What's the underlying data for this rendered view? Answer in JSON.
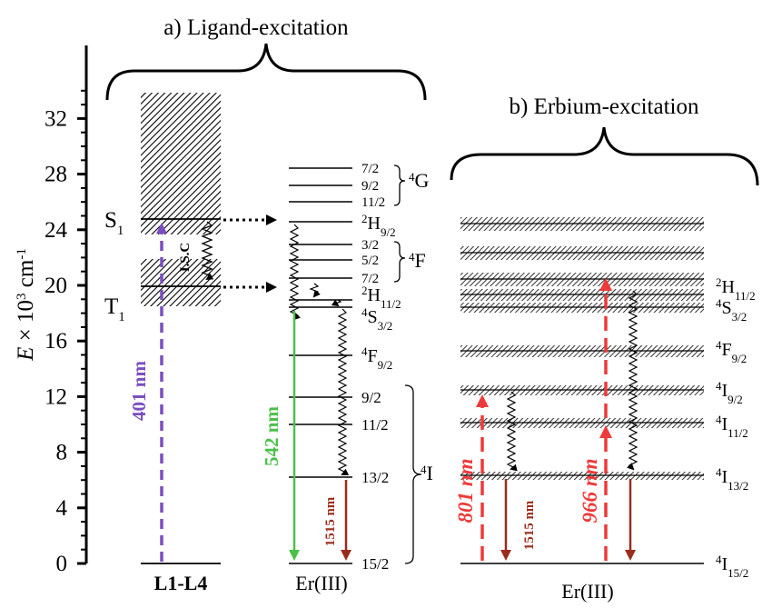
{
  "panel_a": {
    "title": "a) Ligand-excitation"
  },
  "panel_b": {
    "title": "b) Erbium-excitation"
  },
  "y_axis": {
    "label_main": "E",
    "label_rest": " × 10",
    "label_exp": "3",
    "label_unit": " cm",
    "label_unit_exp": "-1",
    "ticks": [
      "0",
      "4",
      "8",
      "12",
      "16",
      "20",
      "24",
      "28",
      "32"
    ]
  },
  "ligand": {
    "name": "L1-L4",
    "s1": {
      "main": "S",
      "sub": "1"
    },
    "t1": {
      "main": "T",
      "sub": "1"
    },
    "isc": "I.S.C",
    "excitation": "401 nm"
  },
  "er_a": {
    "name": "Er(III)",
    "levels": {
      "g72": "7/2",
      "g92": "9/2",
      "g112": "11/2",
      "G_term": "G",
      "G_sup": "4",
      "h92_sup": "2",
      "h92_main": "H",
      "h92_sub": "9/2",
      "f32": "3/2",
      "f52": "5/2",
      "f72": "7/2",
      "F_term": "F",
      "F_sup": "4",
      "h112_sup": "2",
      "h112_main": "H",
      "h112_sub": "11/2",
      "s32_sup": "4",
      "s32_main": "S",
      "s32_sub": "3/2",
      "f92_sup": "4",
      "f92_main": "F",
      "f92_sub": "9/2",
      "i92": "9/2",
      "i112": "11/2",
      "i132": "13/2",
      "i152": "15/2",
      "I_term": "I",
      "I_sup": "4"
    },
    "green": "542 nm",
    "nir": "1515 nm"
  },
  "er_b": {
    "name": "Er(III)",
    "levels": {
      "h112_sup": "2",
      "h112_main": "H",
      "h112_sub": "11/2",
      "s32_sup": "4",
      "s32_main": "S",
      "s32_sub": "3/2",
      "f92_sup": "4",
      "f92_main": "F",
      "f92_sub": "9/2",
      "i92_sup": "4",
      "i92_main": "I",
      "i92_sub": "9/2",
      "i112_sup": "4",
      "i112_main": "I",
      "i112_sub": "11/2",
      "i132_sup": "4",
      "i132_main": "I",
      "i132_sub": "13/2",
      "i152_sup": "4",
      "i152_main": "I",
      "i152_sub": "15/2"
    },
    "exc1": "801 nm",
    "exc2": "966 nm",
    "nir": "1515 nm"
  },
  "colors": {
    "excitation_purple": "#7b4fbf",
    "emission_green": "#4cc04a",
    "emission_brown": "#9b2c1c",
    "excitation_red": "#ee3a3a"
  }
}
